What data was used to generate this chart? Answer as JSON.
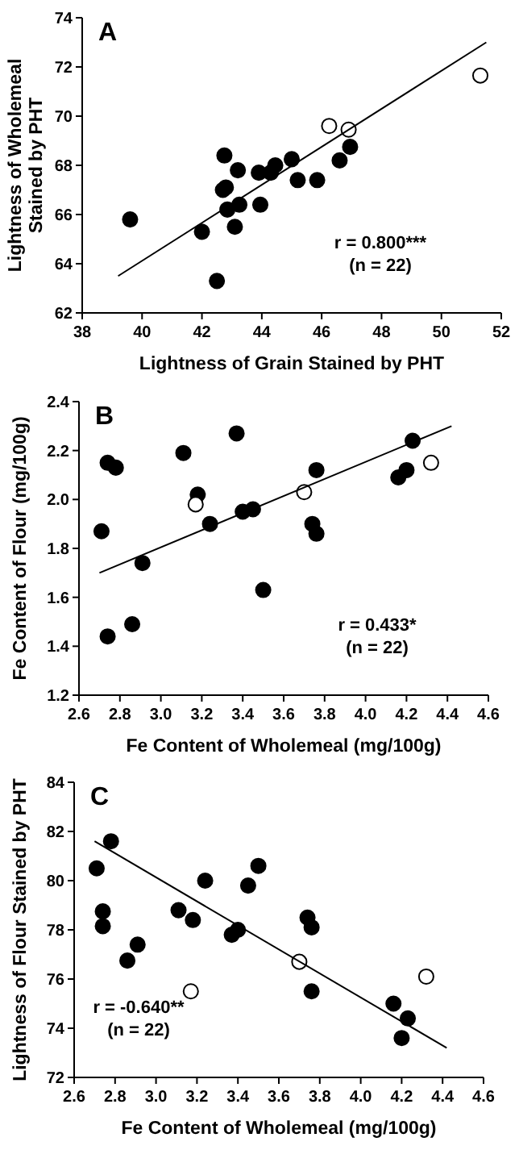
{
  "chart_data": [
    {
      "type": "scatter",
      "title": "A",
      "xlabel": "Lightness of Grain Stained by PHT",
      "ylabel": "Lightness of Wholemeal\nStained by PHT",
      "xlim": [
        38,
        52
      ],
      "xticks": [
        38,
        40,
        42,
        44,
        46,
        48,
        50,
        52
      ],
      "ylim": [
        62,
        74
      ],
      "yticks": [
        62,
        64,
        66,
        68,
        70,
        72,
        74
      ],
      "grid": false,
      "annotations": [
        "r = 0.800***",
        "(n = 22)"
      ],
      "series": [
        {
          "marker": "circle",
          "color": "#000000",
          "x": [
            39.6,
            42.0,
            42.5,
            42.7,
            42.75,
            42.8,
            42.85,
            43.1,
            43.2,
            43.25,
            43.9,
            43.95,
            44.3,
            44.45,
            45.0,
            45.2,
            45.85,
            46.6,
            46.95
          ],
          "values": [
            65.8,
            65.3,
            63.3,
            67.0,
            68.4,
            67.1,
            66.2,
            65.5,
            67.8,
            66.4,
            67.7,
            66.4,
            67.7,
            68.0,
            68.25,
            67.4,
            67.4,
            68.2,
            68.75
          ]
        },
        {
          "marker": "circle",
          "color": "#ffffff",
          "x": [
            46.25,
            46.9,
            51.3
          ],
          "values": [
            69.6,
            69.45,
            71.65
          ]
        },
        {
          "type": "line",
          "color": "#000000",
          "x": [
            39.2,
            51.5
          ],
          "values": [
            63.5,
            73.0
          ]
        }
      ]
    },
    {
      "type": "scatter",
      "title": "B",
      "xlabel": "Fe Content of Wholemeal (mg/100g)",
      "ylabel": "Fe Content of Flour (mg/100g)",
      "xlim": [
        2.6,
        4.6
      ],
      "xticks": [
        {
          "value": 2.6,
          "label": "2.6"
        },
        {
          "value": 2.8,
          "label": "2.8"
        },
        {
          "value": 3.0,
          "label": "3.0"
        },
        {
          "value": 3.2,
          "label": "3.2"
        },
        {
          "value": 3.4,
          "label": "3.4"
        },
        {
          "value": 3.6,
          "label": "3.6"
        },
        {
          "value": 3.8,
          "label": "3.8"
        },
        {
          "value": 4.0,
          "label": "4.0"
        },
        {
          "value": 4.2,
          "label": "4.2"
        },
        {
          "value": 4.4,
          "label": "4.4"
        },
        {
          "value": 4.6,
          "label": "4.6"
        }
      ],
      "ylim": [
        1.2,
        2.4
      ],
      "yticks": [
        {
          "value": 1.2,
          "label": "1.2"
        },
        {
          "value": 1.4,
          "label": "1.4"
        },
        {
          "value": 1.6,
          "label": "1.6"
        },
        {
          "value": 1.8,
          "label": "1.8"
        },
        {
          "value": 2.0,
          "label": "2.0"
        },
        {
          "value": 2.2,
          "label": "2.2"
        },
        {
          "value": 2.4,
          "label": "2.4"
        }
      ],
      "grid": false,
      "annotations": [
        "r = 0.433*",
        "(n = 22)"
      ],
      "series": [
        {
          "marker": "circle",
          "color": "#000000",
          "x": [
            2.71,
            2.74,
            2.74,
            2.78,
            2.86,
            2.91,
            3.11,
            3.18,
            3.24,
            3.37,
            3.4,
            3.45,
            3.5,
            3.74,
            3.76,
            3.76,
            4.16,
            4.2,
            4.23
          ],
          "values": [
            1.87,
            2.15,
            1.44,
            2.13,
            1.49,
            1.74,
            2.19,
            2.02,
            1.9,
            2.27,
            1.95,
            1.96,
            1.63,
            1.9,
            1.86,
            2.12,
            2.09,
            2.12,
            2.24
          ]
        },
        {
          "marker": "circle",
          "color": "#ffffff",
          "x": [
            3.17,
            3.7,
            4.32
          ],
          "values": [
            1.98,
            2.03,
            2.15
          ]
        },
        {
          "type": "line",
          "color": "#000000",
          "x": [
            2.7,
            4.42
          ],
          "values": [
            1.7,
            2.3
          ]
        }
      ]
    },
    {
      "type": "scatter",
      "title": "C",
      "xlabel": "Fe Content of Wholemeal (mg/100g)",
      "ylabel": "Lightness of Flour Stained by PHT",
      "xlim": [
        2.6,
        4.6
      ],
      "xticks": [
        {
          "value": 2.6,
          "label": "2.6"
        },
        {
          "value": 2.8,
          "label": "2.8"
        },
        {
          "value": 3.0,
          "label": "3.0"
        },
        {
          "value": 3.2,
          "label": "3.2"
        },
        {
          "value": 3.4,
          "label": "3.4"
        },
        {
          "value": 3.6,
          "label": "3.6"
        },
        {
          "value": 3.8,
          "label": "3.8"
        },
        {
          "value": 4.0,
          "label": "4.0"
        },
        {
          "value": 4.2,
          "label": "4.2"
        },
        {
          "value": 4.4,
          "label": "4.4"
        },
        {
          "value": 4.6,
          "label": "4.6"
        }
      ],
      "ylim": [
        72,
        84
      ],
      "yticks": [
        72,
        74,
        76,
        78,
        80,
        82,
        84
      ],
      "grid": false,
      "annotations": [
        "r = -0.640**",
        "(n = 22)"
      ],
      "series": [
        {
          "marker": "circle",
          "color": "#000000",
          "x": [
            2.71,
            2.74,
            2.74,
            2.78,
            2.86,
            2.91,
            3.11,
            3.18,
            3.24,
            3.37,
            3.4,
            3.45,
            3.5,
            3.74,
            3.76,
            3.76,
            4.16,
            4.2,
            4.23
          ],
          "values": [
            80.5,
            78.75,
            78.15,
            81.6,
            76.75,
            77.4,
            78.8,
            78.4,
            80.0,
            77.8,
            78.0,
            79.8,
            80.6,
            78.5,
            78.1,
            75.5,
            75.0,
            73.6,
            74.4
          ]
        },
        {
          "marker": "circle",
          "color": "#ffffff",
          "x": [
            3.17,
            3.7,
            4.32
          ],
          "values": [
            75.5,
            76.7,
            76.1
          ]
        },
        {
          "type": "line",
          "color": "#000000",
          "x": [
            2.7,
            4.42
          ],
          "values": [
            81.6,
            73.2
          ]
        }
      ]
    }
  ]
}
